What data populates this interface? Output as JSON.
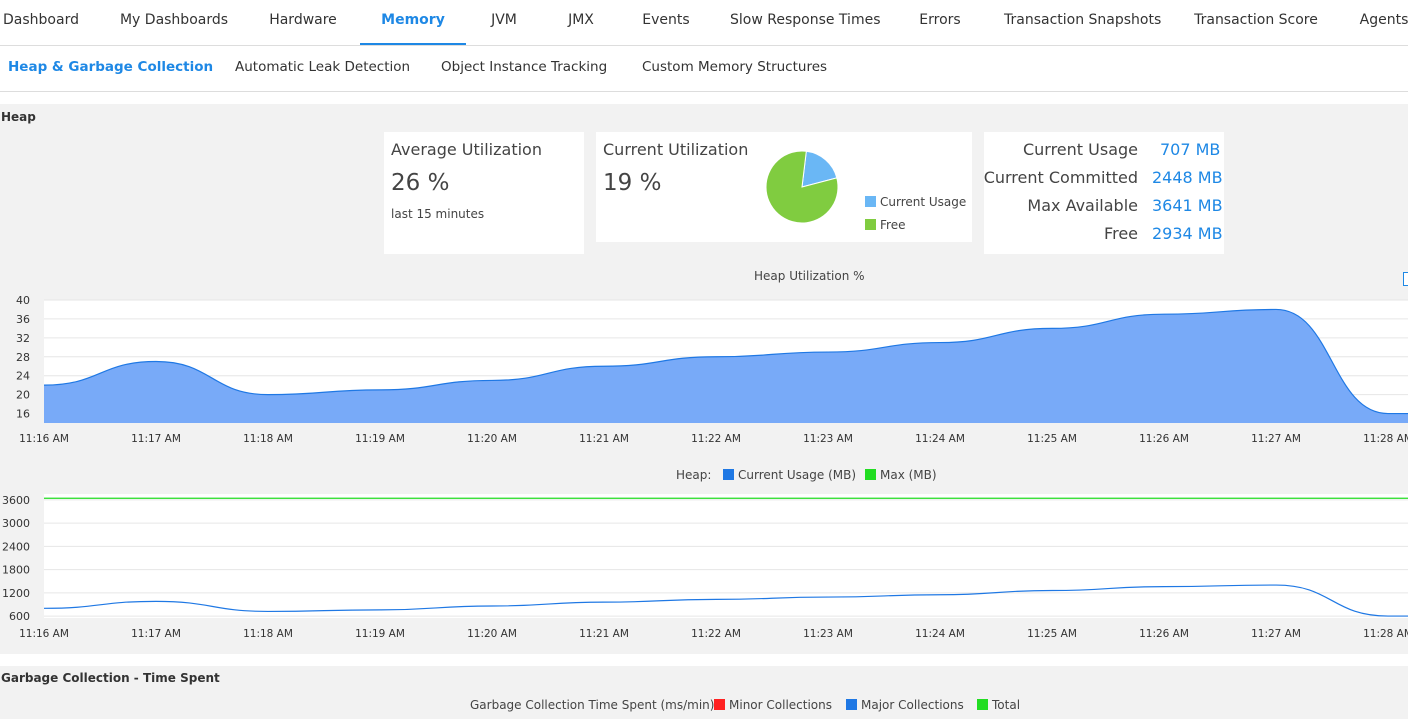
{
  "tabs": [
    "Dashboard",
    "My Dashboards",
    "Hardware",
    "Memory",
    "JVM",
    "JMX",
    "Events",
    "Slow Response Times",
    "Errors",
    "Transaction Snapshots",
    "Transaction Score",
    "Agents"
  ],
  "active_tab": "Memory",
  "subtabs": [
    "Heap & Garbage Collection",
    "Automatic Leak Detection",
    "Object Instance Tracking",
    "Custom Memory Structures"
  ],
  "active_subtab": "Heap & Garbage Collection",
  "heap": {
    "section_title": "Heap",
    "avg": {
      "title": "Average Utilization",
      "value": "26 %",
      "note": "last 15 minutes"
    },
    "current": {
      "title": "Current Utilization",
      "value": "19 %",
      "legend_usage": "Current Usage",
      "legend_free": "Free"
    },
    "stats": [
      {
        "label": "Current Usage",
        "value": "707 MB"
      },
      {
        "label": "Current Committed",
        "value": "2448 MB"
      },
      {
        "label": "Max Available",
        "value": "3641 MB"
      },
      {
        "label": "Free",
        "value": "2934 MB"
      }
    ]
  },
  "gc": {
    "section_title": "Garbage Collection - Time Spent",
    "legend_title": "Garbage Collection Time Spent (ms/min):",
    "legend_minor": "Minor Collections",
    "legend_major": "Major Collections",
    "legend_total": "Total"
  },
  "colors": {
    "accent": "#1e88e5",
    "area": "#78aaf8",
    "usage_line": "#1f78e4",
    "max_line": "#22dd22",
    "pie_usage": "#6ab7f5",
    "pie_free": "#80cc40",
    "minor": "#ff2222",
    "major": "#1f78e4",
    "total": "#22dd22"
  },
  "chart_data": [
    {
      "type": "area",
      "title": "Heap Utilization %",
      "x": [
        "11:16 AM",
        "11:17 AM",
        "11:18 AM",
        "11:19 AM",
        "11:20 AM",
        "11:21 AM",
        "11:22 AM",
        "11:23 AM",
        "11:24 AM",
        "11:25 AM",
        "11:26 AM",
        "11:27 AM",
        "11:28 AM"
      ],
      "y": [
        22,
        27,
        20,
        21,
        23,
        26,
        28,
        29,
        31,
        34,
        37,
        38,
        16
      ],
      "ylim": [
        14,
        40
      ],
      "yticks": [
        16,
        20,
        24,
        28,
        32,
        36,
        40
      ]
    },
    {
      "type": "line",
      "legend_title": "Heap:",
      "x": [
        "11:16 AM",
        "11:17 AM",
        "11:18 AM",
        "11:19 AM",
        "11:20 AM",
        "11:21 AM",
        "11:22 AM",
        "11:23 AM",
        "11:24 AM",
        "11:25 AM",
        "11:26 AM",
        "11:27 AM",
        "11:28 AM"
      ],
      "series": [
        {
          "name": "Current Usage (MB)",
          "values": [
            800,
            980,
            720,
            760,
            860,
            960,
            1030,
            1090,
            1150,
            1260,
            1360,
            1400,
            600
          ]
        },
        {
          "name": "Max (MB)",
          "values": [
            3641,
            3641,
            3641,
            3641,
            3641,
            3641,
            3641,
            3641,
            3641,
            3641,
            3641,
            3641,
            3641
          ]
        }
      ],
      "ylim": [
        550,
        3750
      ],
      "yticks": [
        600,
        1200,
        1800,
        2400,
        3000,
        3600
      ]
    },
    {
      "type": "pie",
      "title": "Current Utilization",
      "slices": [
        {
          "label": "Current Usage",
          "value": 19
        },
        {
          "label": "Free",
          "value": 81
        }
      ]
    }
  ]
}
